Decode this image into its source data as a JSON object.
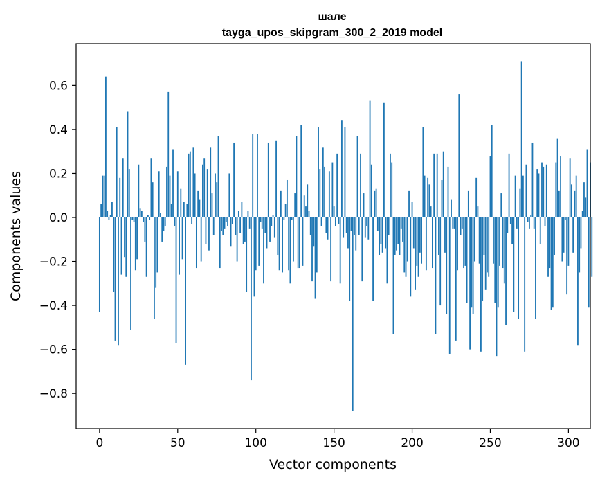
{
  "chart_data": {
    "type": "bar",
    "title_line1": "шале",
    "title_line2": "tayga_upos_skipgram_300_2_2019 model",
    "xlabel": "Vector components",
    "ylabel": "Components values",
    "xlim": [
      -15,
      314
    ],
    "ylim": [
      -0.96,
      0.79
    ],
    "x_ticks": [
      0,
      50,
      100,
      150,
      200,
      250,
      300
    ],
    "y_ticks": [
      -0.8,
      -0.6,
      -0.4,
      -0.2,
      0.0,
      0.2,
      0.4,
      0.6
    ],
    "y_tick_labels": [
      "−0.8",
      "−0.6",
      "−0.4",
      "−0.2",
      "0.0",
      "0.2",
      "0.4",
      "0.6"
    ],
    "bar_color": "#1f77b4",
    "values": [
      -0.43,
      0.06,
      0.19,
      0.19,
      0.64,
      0.03,
      -0.01,
      0.01,
      0.07,
      -0.34,
      -0.56,
      0.41,
      -0.58,
      0.18,
      -0.26,
      0.27,
      -0.18,
      -0.27,
      0.48,
      0.22,
      -0.51,
      -0.01,
      -0.02,
      -0.24,
      -0.19,
      0.24,
      0.04,
      0.03,
      -0.02,
      -0.11,
      -0.27,
      0.01,
      -0.01,
      0.27,
      0.16,
      -0.46,
      -0.32,
      -0.25,
      0.21,
      0.02,
      -0.11,
      -0.06,
      -0.04,
      0.23,
      0.57,
      0.19,
      0.06,
      0.31,
      -0.04,
      -0.57,
      0.21,
      -0.26,
      0.13,
      -0.19,
      0.07,
      -0.67,
      0.06,
      0.29,
      0.3,
      -0.03,
      0.32,
      0.2,
      -0.23,
      0.12,
      0.08,
      -0.2,
      0.24,
      0.27,
      -0.12,
      0.22,
      -0.15,
      0.32,
      0.11,
      -0.08,
      0.2,
      0.16,
      0.37,
      -0.23,
      -0.06,
      -0.08,
      -0.05,
      -0.02,
      -0.04,
      0.2,
      -0.13,
      -0.03,
      0.34,
      -0.08,
      -0.2,
      0.03,
      -0.07,
      0.07,
      -0.12,
      -0.11,
      -0.34,
      0.03,
      -0.05,
      -0.74,
      0.38,
      -0.36,
      -0.24,
      0.38,
      -0.22,
      -0.02,
      -0.05,
      -0.3,
      -0.07,
      -0.14,
      0.34,
      -0.11,
      -0.04,
      0.01,
      -0.09,
      0.35,
      -0.17,
      -0.24,
      0.12,
      -0.25,
      -0.01,
      0.06,
      0.17,
      -0.24,
      -0.3,
      -0.01,
      -0.2,
      0.11,
      0.37,
      -0.23,
      -0.23,
      0.42,
      -0.22,
      0.1,
      0.05,
      0.15,
      0.03,
      -0.08,
      -0.29,
      -0.13,
      -0.37,
      -0.25,
      0.41,
      0.22,
      -0.04,
      0.32,
      0.23,
      -0.07,
      -0.1,
      0.21,
      -0.29,
      0.25,
      0.05,
      -0.04,
      0.29,
      -0.03,
      -0.3,
      0.44,
      -0.09,
      0.41,
      -0.07,
      -0.14,
      -0.38,
      -0.06,
      -0.88,
      -0.08,
      -0.15,
      0.37,
      -0.08,
      0.29,
      -0.29,
      0.11,
      -0.09,
      -0.04,
      -0.1,
      0.53,
      0.24,
      -0.38,
      0.12,
      0.13,
      -0.06,
      -0.17,
      -0.12,
      -0.16,
      0.52,
      -0.14,
      -0.3,
      -0.08,
      0.29,
      0.25,
      -0.53,
      -0.17,
      -0.15,
      -0.12,
      -0.17,
      -0.05,
      -0.11,
      -0.25,
      -0.27,
      -0.2,
      0.12,
      -0.36,
      0.07,
      -0.14,
      -0.33,
      -0.22,
      -0.27,
      -0.16,
      -0.21,
      0.41,
      0.19,
      -0.24,
      0.18,
      0.15,
      0.05,
      -0.23,
      0.29,
      -0.53,
      0.29,
      -0.17,
      -0.4,
      0.17,
      0.3,
      -0.16,
      -0.44,
      0.23,
      -0.62,
      0.08,
      -0.05,
      -0.05,
      -0.56,
      -0.24,
      0.56,
      -0.08,
      -0.05,
      -0.23,
      -0.22,
      -0.39,
      0.12,
      -0.6,
      -0.41,
      -0.44,
      -0.2,
      0.18,
      0.05,
      -0.21,
      -0.61,
      -0.38,
      -0.17,
      -0.33,
      -0.25,
      -0.27,
      0.28,
      0.42,
      -0.21,
      -0.39,
      -0.63,
      -0.41,
      -0.22,
      0.11,
      -0.23,
      -0.3,
      -0.49,
      -0.07,
      0.29,
      -0.03,
      -0.12,
      -0.43,
      0.19,
      -0.05,
      -0.46,
      0.13,
      0.71,
      0.19,
      -0.61,
      0.24,
      -0.02,
      -0.05,
      0.01,
      0.34,
      -0.05,
      -0.46,
      0.22,
      0.2,
      -0.12,
      0.25,
      0.23,
      -0.04,
      0.24,
      -0.27,
      -0.23,
      -0.42,
      -0.41,
      -0.17,
      0.25,
      0.36,
      0.12,
      0.28,
      -0.2,
      -0.16,
      -0.01,
      -0.35,
      -0.22,
      0.27,
      0.15,
      -0.16,
      0.12,
      0.19,
      -0.58,
      -0.25,
      -0.14,
      0.03,
      0.16,
      0.09,
      0.31,
      -0.41,
      0.25,
      -0.27
    ]
  }
}
